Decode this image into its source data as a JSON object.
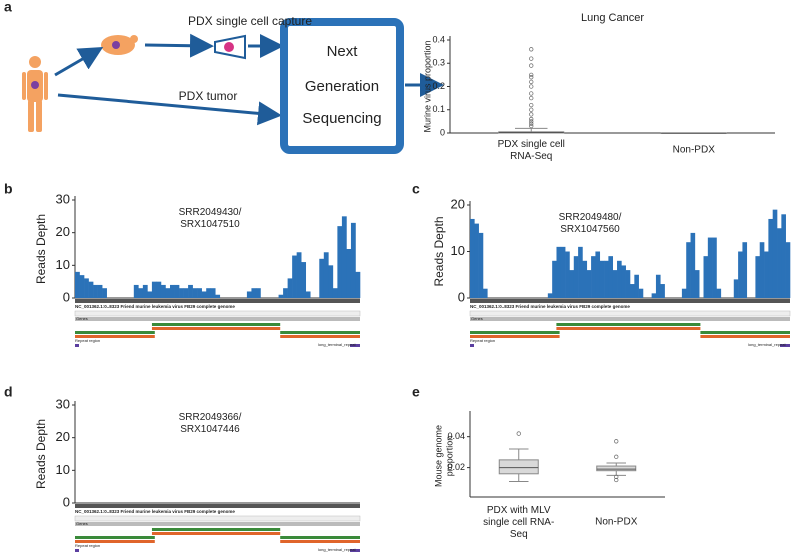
{
  "panels": [
    "a",
    "b",
    "c",
    "d",
    "e"
  ],
  "diagram": {
    "capture": "PDX single cell capture",
    "tumor": "PDX tumor",
    "box_lines": [
      "Next",
      "Generation",
      "Sequencing"
    ]
  },
  "genome_track": {
    "title": "NC_001362.1:0..8323 Friend murine leukemia virus FB29 complete genome",
    "genes": "Genes",
    "repeat": "Repeat region",
    "repeat_name": "long_terminal_repeat"
  },
  "chart_data": [
    {
      "type": "box",
      "title": "Lung Cancer",
      "ylabel": "Murine virus proportion",
      "categories": [
        "PDX single cell\nRNA-Seq",
        "Non-PDX"
      ],
      "boxes": [
        {
          "whislo": 0,
          "q1": 0,
          "med": 0.002,
          "q3": 0.005,
          "whishi": 0.02,
          "fliers": [
            0.03,
            0.04,
            0.05,
            0.06,
            0.08,
            0.1,
            0.12,
            0.15,
            0.17,
            0.2,
            0.22,
            0.24,
            0.25,
            0.29,
            0.32,
            0.36
          ]
        },
        {
          "whislo": 0,
          "q1": 0,
          "med": 0,
          "q3": 0,
          "whishi": 0,
          "fliers": []
        }
      ],
      "ylim": [
        0,
        0.4
      ],
      "yticks": [
        0,
        0.1,
        0.2,
        0.3,
        0.4
      ],
      "color": "#d9d9d9"
    },
    {
      "type": "bar",
      "ylabel": "Reads Depth",
      "annotation": "SRR2049430/\nSRX1047510",
      "color": "#2b72b8",
      "values": [
        8,
        7,
        6,
        5,
        4,
        4,
        3,
        0,
        0,
        0,
        0,
        0,
        0,
        4,
        3,
        4,
        2,
        5,
        5,
        4,
        3,
        4,
        4,
        3,
        3,
        4,
        3,
        3,
        2,
        3,
        3,
        1,
        0,
        0,
        0,
        0,
        0,
        0,
        2,
        3,
        3,
        0,
        0,
        0,
        0,
        1,
        3,
        6,
        13,
        14,
        11,
        2,
        0,
        0,
        12,
        14,
        10,
        3,
        22,
        25,
        15,
        23,
        8
      ],
      "ylim": [
        0,
        30
      ],
      "yticks": [
        0,
        10,
        20,
        30
      ]
    },
    {
      "type": "bar",
      "ylabel": "Reads Depth",
      "annotation": "SRR2049480/\nSRX1047560",
      "color": "#2b72b8",
      "values": [
        17,
        16,
        14,
        2,
        0,
        0,
        0,
        0,
        0,
        0,
        0,
        0,
        0,
        0,
        0,
        0,
        0,
        0,
        1,
        8,
        11,
        11,
        10,
        6,
        9,
        11,
        8,
        6,
        9,
        10,
        8,
        8,
        9,
        6,
        8,
        7,
        6,
        3,
        5,
        2,
        0,
        0,
        1,
        5,
        3,
        0,
        0,
        0,
        0,
        2,
        12,
        14,
        6,
        0,
        9,
        13,
        13,
        2,
        0,
        0,
        0,
        4,
        10,
        12,
        0,
        0,
        9,
        12,
        10,
        17,
        19,
        15,
        18,
        12
      ],
      "ylim": [
        0,
        20
      ],
      "yticks": [
        0,
        10,
        20
      ]
    },
    {
      "type": "bar",
      "ylabel": "Reads Depth",
      "annotation": "SRR2049366/\nSRX1047446",
      "color": "#2b72b8",
      "values": [],
      "ylim": [
        0,
        30
      ],
      "yticks": [
        0,
        10,
        20,
        30
      ]
    },
    {
      "type": "box",
      "ylabel": "Mouse genome\nproportion",
      "categories": [
        "PDX with MLV\nsingle cell RNA-\nSeq",
        "Non-PDX"
      ],
      "boxes": [
        {
          "whislo": 0.011,
          "q1": 0.016,
          "med": 0.02,
          "q3": 0.025,
          "whishi": 0.032,
          "fliers": [
            0.042
          ]
        },
        {
          "whislo": 0.015,
          "q1": 0.018,
          "med": 0.019,
          "q3": 0.021,
          "whishi": 0.023,
          "fliers": [
            0.037,
            0.027,
            0.014,
            0.012
          ]
        }
      ],
      "ylim": [
        0.001,
        0.054
      ],
      "yticks": [
        0.02,
        0.04
      ],
      "color": "#d9d9d9"
    }
  ]
}
